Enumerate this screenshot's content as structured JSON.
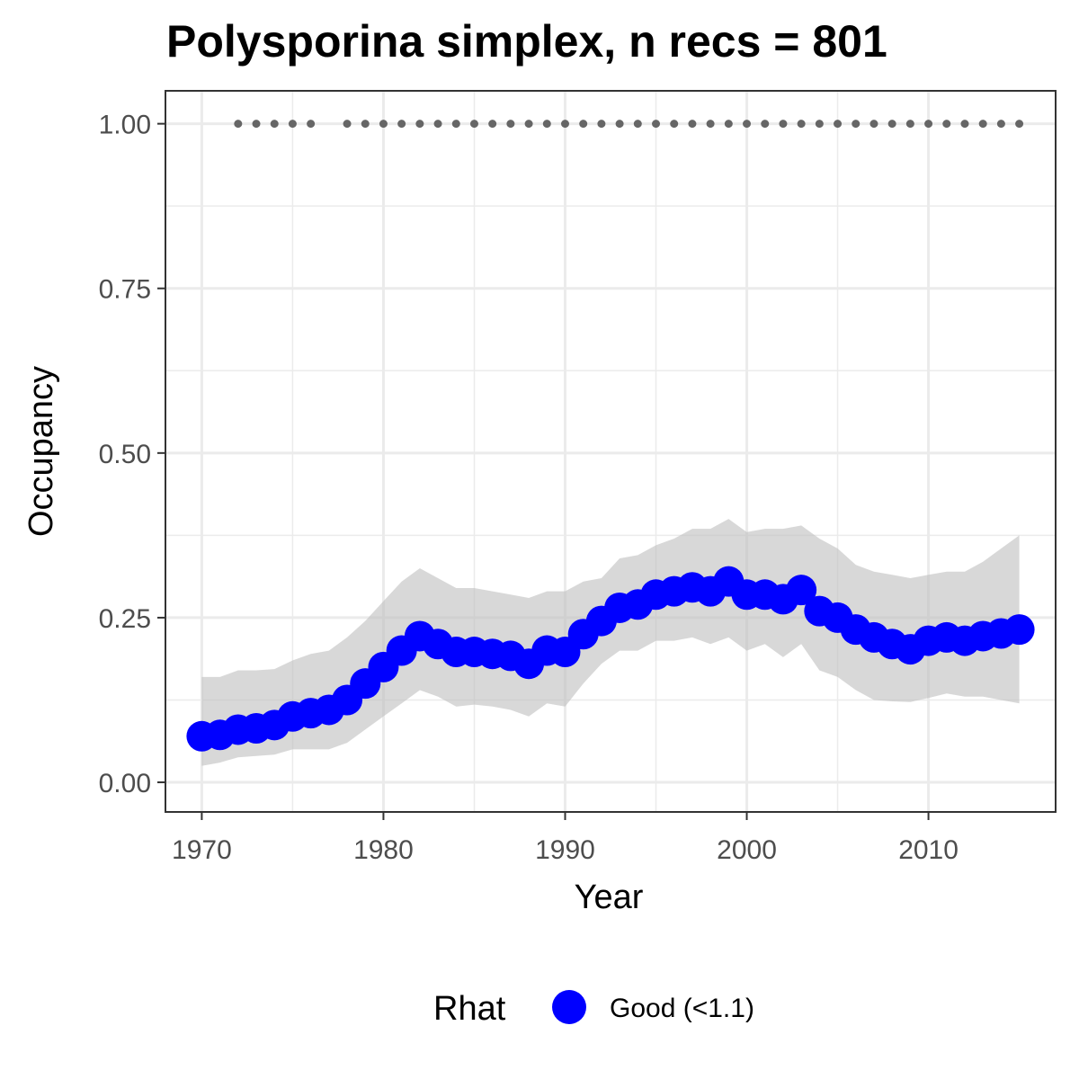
{
  "chart_data": {
    "type": "line",
    "title": "Polysporina simplex, n recs = 801",
    "xlabel": "Year",
    "ylabel": "Occupancy",
    "xlim": [
      1968,
      2017
    ],
    "ylim": [
      -0.045,
      1.05
    ],
    "x_ticks": [
      1970,
      1980,
      1990,
      2000,
      2010
    ],
    "x_tick_labels": [
      "1970",
      "1980",
      "1990",
      "2000",
      "2010"
    ],
    "y_ticks": [
      0,
      0.25,
      0.5,
      0.75,
      1.0
    ],
    "y_tick_labels": [
      "0.00",
      "0.25",
      "0.50",
      "0.75",
      "1.00"
    ],
    "grid": true,
    "colors": {
      "point": "#0000ff",
      "ribbon": "#bebebe",
      "record_dots": "#666666",
      "grid": "#ebebeb",
      "panel_border": "#333333"
    },
    "series": [
      {
        "name": "Good (<1.1)",
        "x": [
          1970,
          1971,
          1972,
          1973,
          1974,
          1975,
          1976,
          1977,
          1978,
          1979,
          1980,
          1981,
          1982,
          1983,
          1984,
          1985,
          1986,
          1987,
          1988,
          1989,
          1990,
          1991,
          1992,
          1993,
          1994,
          1995,
          1996,
          1997,
          1998,
          1999,
          2000,
          2001,
          2002,
          2003,
          2004,
          2005,
          2006,
          2007,
          2008,
          2009,
          2010,
          2011,
          2012,
          2013,
          2014,
          2015
        ],
        "y": [
          0.07,
          0.072,
          0.08,
          0.082,
          0.087,
          0.1,
          0.105,
          0.11,
          0.125,
          0.15,
          0.175,
          0.2,
          0.222,
          0.21,
          0.198,
          0.198,
          0.195,
          0.192,
          0.18,
          0.2,
          0.198,
          0.225,
          0.245,
          0.265,
          0.27,
          0.285,
          0.29,
          0.296,
          0.29,
          0.305,
          0.285,
          0.285,
          0.278,
          0.292,
          0.26,
          0.25,
          0.232,
          0.22,
          0.21,
          0.202,
          0.215,
          0.22,
          0.215,
          0.222,
          0.226,
          0.232
        ],
        "lower": [
          0.025,
          0.03,
          0.038,
          0.04,
          0.042,
          0.05,
          0.05,
          0.05,
          0.06,
          0.08,
          0.1,
          0.12,
          0.14,
          0.13,
          0.115,
          0.118,
          0.115,
          0.11,
          0.1,
          0.12,
          0.115,
          0.15,
          0.18,
          0.2,
          0.2,
          0.215,
          0.215,
          0.22,
          0.21,
          0.22,
          0.2,
          0.21,
          0.19,
          0.21,
          0.17,
          0.16,
          0.14,
          0.125,
          0.123,
          0.122,
          0.128,
          0.135,
          0.13,
          0.13,
          0.125,
          0.12
        ],
        "upper": [
          0.16,
          0.16,
          0.17,
          0.17,
          0.172,
          0.185,
          0.195,
          0.2,
          0.22,
          0.245,
          0.275,
          0.305,
          0.325,
          0.31,
          0.295,
          0.295,
          0.29,
          0.285,
          0.28,
          0.29,
          0.29,
          0.305,
          0.31,
          0.34,
          0.345,
          0.36,
          0.37,
          0.385,
          0.385,
          0.4,
          0.38,
          0.385,
          0.385,
          0.39,
          0.37,
          0.355,
          0.33,
          0.32,
          0.315,
          0.31,
          0.315,
          0.32,
          0.32,
          0.335,
          0.355,
          0.375
        ]
      }
    ],
    "records": {
      "x": [
        1972,
        1973,
        1974,
        1975,
        1976,
        1978,
        1979,
        1980,
        1981,
        1982,
        1983,
        1984,
        1985,
        1986,
        1987,
        1988,
        1989,
        1990,
        1991,
        1992,
        1993,
        1994,
        1995,
        1996,
        1997,
        1998,
        1999,
        2000,
        2001,
        2002,
        2003,
        2004,
        2005,
        2006,
        2007,
        2008,
        2009,
        2010,
        2011,
        2012,
        2013,
        2014,
        2015
      ],
      "y": 1.0
    },
    "legend": {
      "title": "Rhat",
      "position": "bottom",
      "entries": [
        {
          "label": "Good (<1.1)",
          "color": "#0000ff"
        }
      ]
    }
  }
}
